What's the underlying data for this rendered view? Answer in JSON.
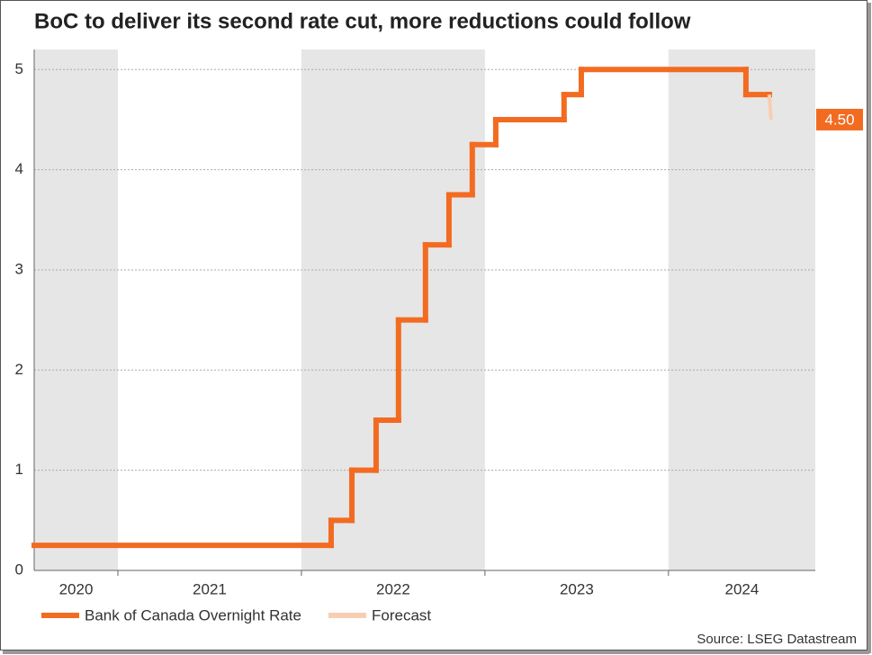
{
  "chart_data": {
    "type": "step-line",
    "title": "BoC to deliver its second rate cut, more reductions could follow",
    "source": "Source: LSEG Datastream",
    "xlim": [
      2020.544,
      2024.8
    ],
    "ylim": [
      0,
      5.2
    ],
    "yticks": [
      0,
      1,
      2,
      3,
      4,
      5
    ],
    "grid": true,
    "year_bands": [
      {
        "label": "2020",
        "start": 2020.544,
        "end": 2021,
        "shaded": true
      },
      {
        "label": "2021",
        "start": 2021,
        "end": 2022,
        "shaded": false
      },
      {
        "label": "2022",
        "start": 2022,
        "end": 2023,
        "shaded": true
      },
      {
        "label": "2023",
        "start": 2023,
        "end": 2024,
        "shaded": false
      },
      {
        "label": "2024",
        "start": 2024,
        "end": 2024.8,
        "shaded": true
      }
    ],
    "series": [
      {
        "name": "Bank of Canada Overnight Rate",
        "color": "#f26b21",
        "x": [
          2020.544,
          2022.162,
          2022.275,
          2022.407,
          2022.529,
          2022.676,
          2022.804,
          2022.931,
          2023.059,
          2023.431,
          2023.525,
          2024.422,
          2024.549
        ],
        "values": [
          0.25,
          0.5,
          1,
          1.5,
          2.5,
          3.25,
          3.75,
          4.25,
          4.5,
          4.75,
          5,
          4.75,
          4.75
        ]
      },
      {
        "name": "Forecast",
        "color": "#f8cdb2",
        "x": [
          2024.549,
          2024.559
        ],
        "values": [
          4.75,
          4.5
        ]
      }
    ],
    "annotation": {
      "text": "4.50",
      "value": 4.5,
      "color": "#f26b21"
    }
  }
}
